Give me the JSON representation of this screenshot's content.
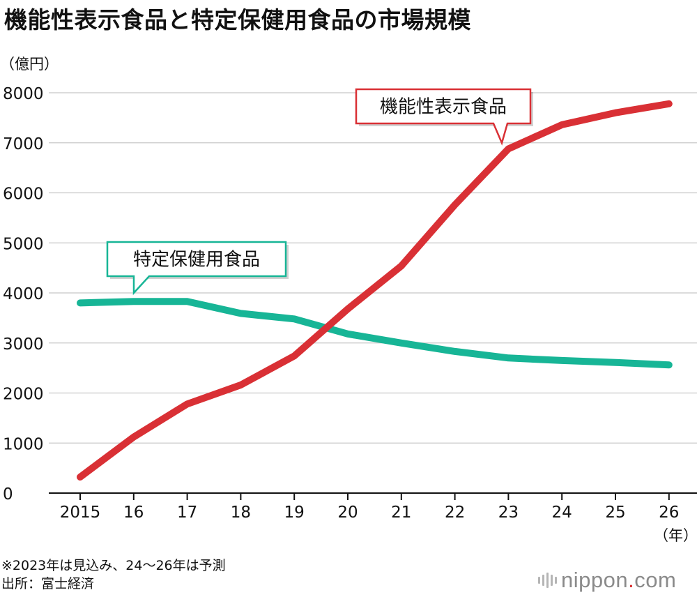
{
  "title": "機能性表示食品と特定保健用食品の市場規模",
  "brand": {
    "name_part1": "nippon",
    "dot": ".",
    "name_part2": "com"
  },
  "footnotes": [
    "※2023年は見込み、24～26年は予測",
    "出所：富士経済"
  ],
  "chart_data": {
    "type": "line",
    "title": "機能性表示食品と特定保健用食品の市場規模",
    "ylabel": "（億円）",
    "xlabel": "（年）",
    "ylim": [
      0,
      8000
    ],
    "yticks": [
      0,
      1000,
      2000,
      3000,
      4000,
      5000,
      6000,
      7000,
      8000
    ],
    "categories": [
      "2015",
      "16",
      "17",
      "18",
      "19",
      "20",
      "21",
      "22",
      "23",
      "24",
      "25",
      "26"
    ],
    "grid": true,
    "series": [
      {
        "name": "機能性表示食品",
        "color": "#d93035",
        "values": [
          320,
          1120,
          1780,
          2160,
          2740,
          3680,
          4540,
          5760,
          6880,
          7360,
          7600,
          7780
        ]
      },
      {
        "name": "特定保健用食品",
        "color": "#17b596",
        "values": [
          3800,
          3830,
          3830,
          3590,
          3480,
          3180,
          3000,
          2830,
          2700,
          2650,
          2610,
          2560
        ]
      }
    ]
  }
}
